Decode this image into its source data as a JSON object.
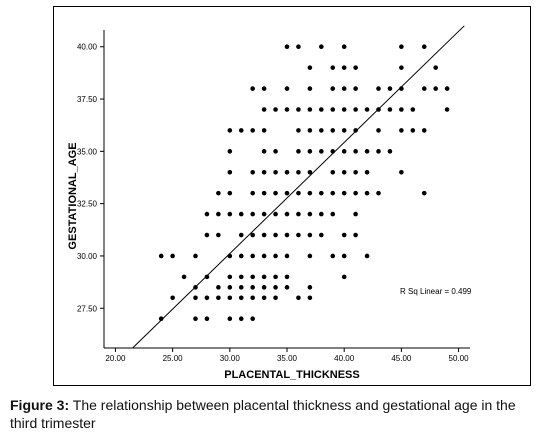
{
  "caption": {
    "label": "Figure 3:",
    "text": " The relationship between placental thickness and gestational age in the third trimester"
  },
  "chart_data": {
    "type": "scatter",
    "xlabel": "PLACENTAL_THICKNESS",
    "ylabel": "GESTATIONAL_AGE",
    "xlim": [
      19,
      51
    ],
    "ylim": [
      25.6,
      40.8
    ],
    "x_ticks": [
      20,
      25,
      30,
      35,
      40,
      45,
      50
    ],
    "x_tick_labels": [
      "20.00",
      "25.00",
      "30.00",
      "35.00",
      "40.00",
      "45.00",
      "50.00"
    ],
    "y_ticks": [
      27.5,
      30,
      32.5,
      35,
      37.5,
      40
    ],
    "y_tick_labels": [
      "27.50",
      "30.00",
      "32.50",
      "35.00",
      "37.50",
      "40.00"
    ],
    "grid": false,
    "annotation": "R Sq Linear = 0.499",
    "fit_line": {
      "x": [
        21.5,
        50.5
      ],
      "y": [
        25.6,
        41.0
      ]
    },
    "points": [
      [
        35,
        40
      ],
      [
        36,
        40
      ],
      [
        38,
        40
      ],
      [
        40,
        40
      ],
      [
        45,
        40
      ],
      [
        47,
        40
      ],
      [
        37,
        39
      ],
      [
        39,
        39
      ],
      [
        40,
        39
      ],
      [
        41,
        39
      ],
      [
        45,
        39
      ],
      [
        48,
        39
      ],
      [
        32,
        38
      ],
      [
        33,
        38
      ],
      [
        35,
        38
      ],
      [
        37,
        38
      ],
      [
        39,
        38
      ],
      [
        40,
        38
      ],
      [
        41,
        38
      ],
      [
        43,
        38
      ],
      [
        44,
        38
      ],
      [
        45,
        38
      ],
      [
        47,
        38
      ],
      [
        48,
        38
      ],
      [
        49,
        38
      ],
      [
        33,
        37
      ],
      [
        34,
        37
      ],
      [
        35,
        37
      ],
      [
        36,
        37
      ],
      [
        37,
        37
      ],
      [
        38,
        37
      ],
      [
        39,
        37
      ],
      [
        40,
        37
      ],
      [
        41,
        37
      ],
      [
        42,
        37
      ],
      [
        43,
        37
      ],
      [
        44,
        37
      ],
      [
        45,
        37
      ],
      [
        46,
        37
      ],
      [
        49,
        37
      ],
      [
        30,
        36
      ],
      [
        31,
        36
      ],
      [
        32,
        36
      ],
      [
        33,
        36
      ],
      [
        36,
        36
      ],
      [
        37,
        36
      ],
      [
        38,
        36
      ],
      [
        39,
        36
      ],
      [
        40,
        36
      ],
      [
        41,
        36
      ],
      [
        43,
        36
      ],
      [
        45,
        36
      ],
      [
        46,
        36
      ],
      [
        47,
        36
      ],
      [
        30,
        35
      ],
      [
        33,
        35
      ],
      [
        34,
        35
      ],
      [
        36,
        35
      ],
      [
        37,
        35
      ],
      [
        38,
        35
      ],
      [
        39,
        35
      ],
      [
        40,
        35
      ],
      [
        41,
        35
      ],
      [
        42,
        35
      ],
      [
        43,
        35
      ],
      [
        44,
        35
      ],
      [
        30,
        34
      ],
      [
        32,
        34
      ],
      [
        33,
        34
      ],
      [
        34,
        34
      ],
      [
        35,
        34
      ],
      [
        36,
        34
      ],
      [
        37,
        34
      ],
      [
        39,
        34
      ],
      [
        40,
        34
      ],
      [
        41,
        34
      ],
      [
        42,
        34
      ],
      [
        45,
        34
      ],
      [
        29,
        33
      ],
      [
        30,
        33
      ],
      [
        32,
        33
      ],
      [
        33,
        33
      ],
      [
        34,
        33
      ],
      [
        35,
        33
      ],
      [
        36,
        33
      ],
      [
        37,
        33
      ],
      [
        38,
        33
      ],
      [
        39,
        33
      ],
      [
        40,
        33
      ],
      [
        41,
        33
      ],
      [
        42,
        33
      ],
      [
        43,
        33
      ],
      [
        47,
        33
      ],
      [
        28,
        32
      ],
      [
        29,
        32
      ],
      [
        30,
        32
      ],
      [
        31,
        32
      ],
      [
        32,
        32
      ],
      [
        33,
        32
      ],
      [
        34,
        32
      ],
      [
        35,
        32
      ],
      [
        36,
        32
      ],
      [
        37,
        32
      ],
      [
        38,
        32
      ],
      [
        39,
        32
      ],
      [
        41,
        32
      ],
      [
        28,
        31
      ],
      [
        29,
        31
      ],
      [
        31,
        31
      ],
      [
        32,
        31
      ],
      [
        33,
        31
      ],
      [
        34,
        31
      ],
      [
        35,
        31
      ],
      [
        36,
        31
      ],
      [
        37,
        31
      ],
      [
        38,
        31
      ],
      [
        40,
        31
      ],
      [
        41,
        31
      ],
      [
        24,
        30
      ],
      [
        25,
        30
      ],
      [
        27,
        30
      ],
      [
        30,
        30
      ],
      [
        31,
        30
      ],
      [
        32,
        30
      ],
      [
        33,
        30
      ],
      [
        34,
        30
      ],
      [
        35,
        30
      ],
      [
        37,
        30
      ],
      [
        39,
        30
      ],
      [
        40,
        30
      ],
      [
        42,
        30
      ],
      [
        26,
        29
      ],
      [
        28,
        29
      ],
      [
        30,
        29
      ],
      [
        31,
        29
      ],
      [
        32,
        29
      ],
      [
        33,
        29
      ],
      [
        34,
        29
      ],
      [
        35,
        29
      ],
      [
        40,
        29
      ],
      [
        27,
        28.5
      ],
      [
        29,
        28.5
      ],
      [
        30,
        28.5
      ],
      [
        31,
        28.5
      ],
      [
        32,
        28.5
      ],
      [
        33,
        28.5
      ],
      [
        34,
        28.5
      ],
      [
        35,
        28.5
      ],
      [
        37,
        28.5
      ],
      [
        25,
        28
      ],
      [
        27,
        28
      ],
      [
        28,
        28
      ],
      [
        29,
        28
      ],
      [
        30,
        28
      ],
      [
        31,
        28
      ],
      [
        32,
        28
      ],
      [
        33,
        28
      ],
      [
        34,
        28
      ],
      [
        36,
        28
      ],
      [
        37,
        28
      ],
      [
        24,
        27
      ],
      [
        27,
        27
      ],
      [
        28,
        27
      ],
      [
        30,
        27
      ],
      [
        31,
        27
      ],
      [
        32,
        27
      ]
    ]
  }
}
